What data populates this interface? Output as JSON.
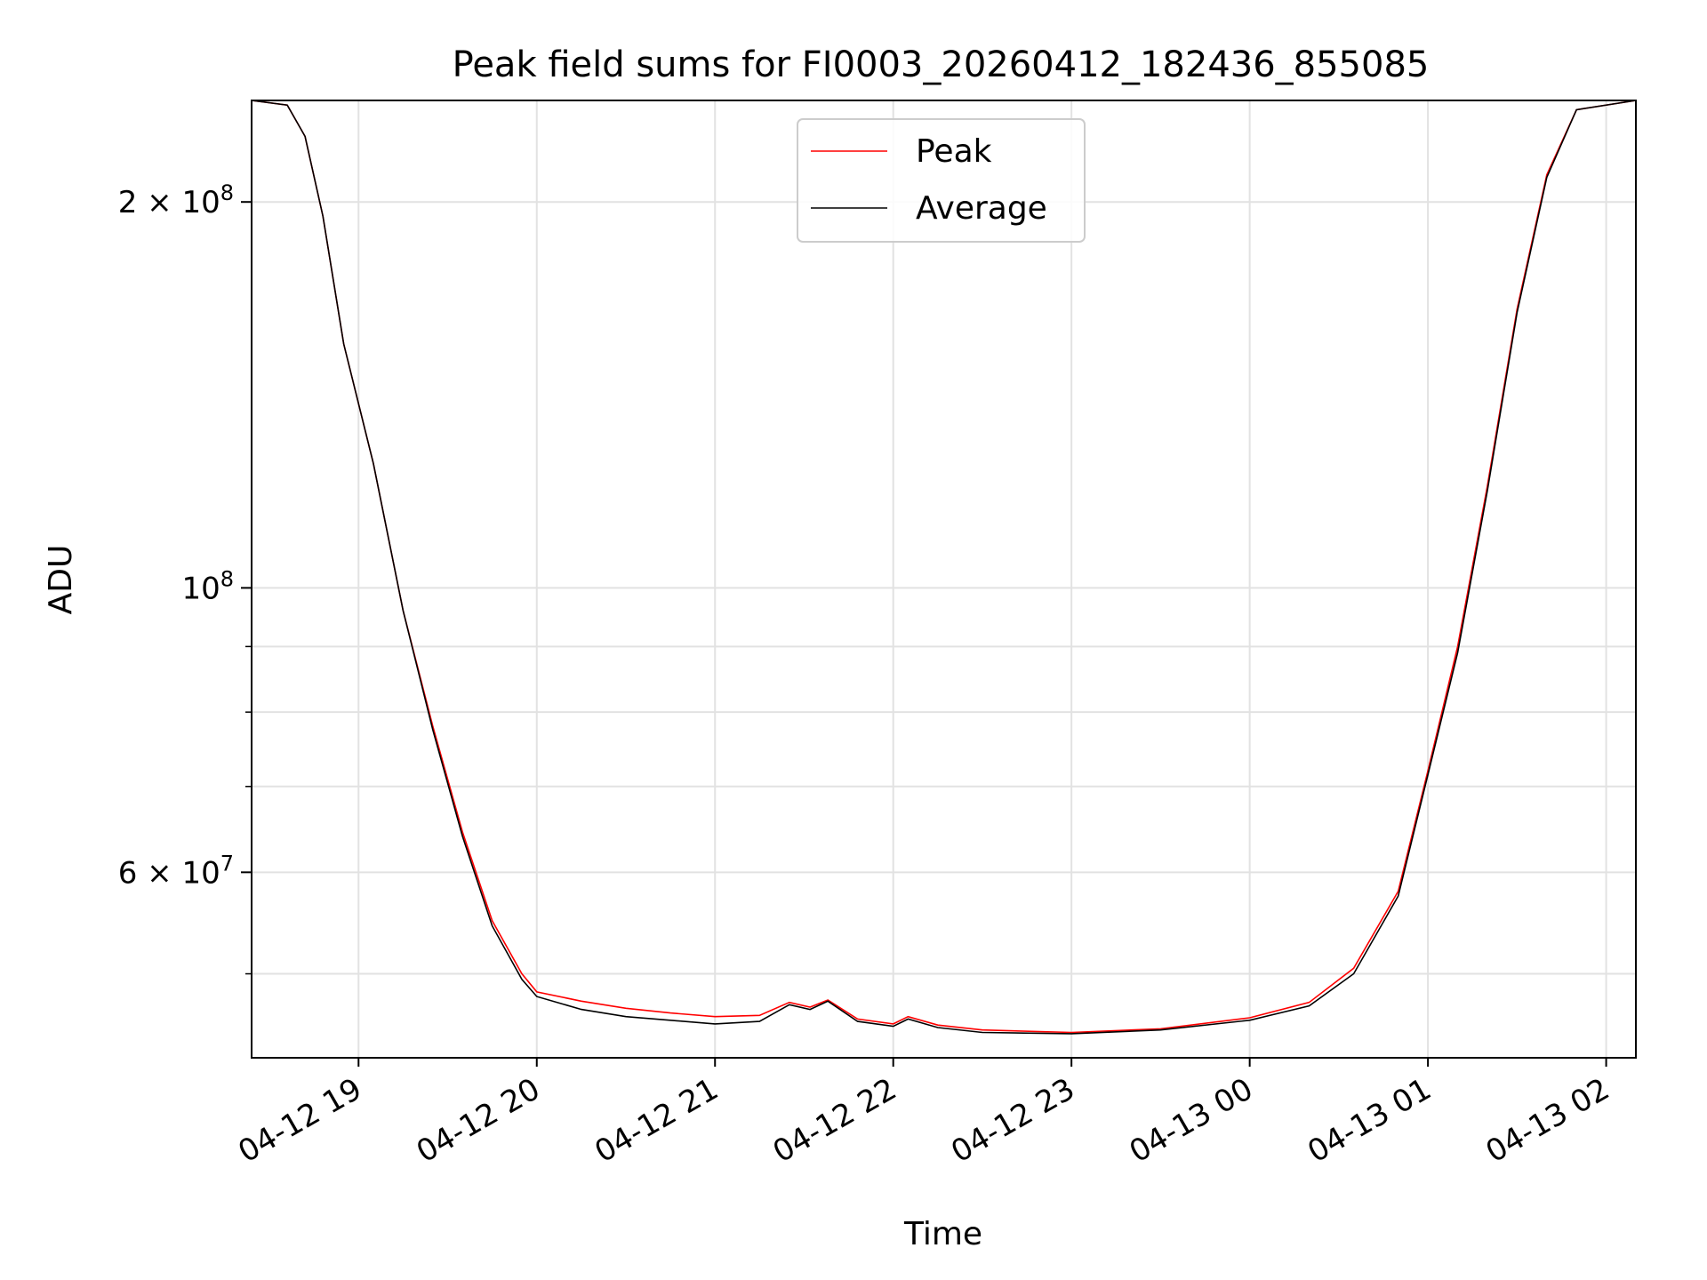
{
  "chart_data": {
    "type": "line",
    "title": "Peak field sums for FI0003_20260412_182436_855085",
    "xlabel": "Time",
    "ylabel": "ADU",
    "x_type": "datetime",
    "xlim": [
      "2026-04-12 18:24",
      "2026-04-13 02:10"
    ],
    "ylim": [
      43000000,
      240000000
    ],
    "y_scale": "log",
    "grid": true,
    "legend_position": "top-center",
    "x_ticks": [
      "2026-04-12 19:00",
      "2026-04-12 20:00",
      "2026-04-12 21:00",
      "2026-04-12 22:00",
      "2026-04-12 23:00",
      "2026-04-13 00:00",
      "2026-04-13 01:00",
      "2026-04-13 02:00"
    ],
    "x_tick_labels": [
      "04-12 19",
      "04-12 20",
      "04-12 21",
      "04-12 22",
      "04-12 23",
      "04-13 00",
      "04-13 01",
      "04-13 02"
    ],
    "y_major_ticks": [
      {
        "value": 60000000,
        "mantissa": "6",
        "exp": "7"
      },
      {
        "value": 100000000,
        "mantissa": "",
        "exp": "8"
      },
      {
        "value": 200000000,
        "mantissa": "2",
        "exp": "8"
      }
    ],
    "y_minor_ticks": [
      50000000,
      70000000,
      80000000,
      90000000
    ],
    "series": [
      {
        "name": "Peak",
        "color": "#ff0000",
        "points": [
          [
            "2026-04-12 18:24",
            240000000
          ],
          [
            "2026-04-12 18:36",
            238000000
          ],
          [
            "2026-04-12 18:42",
            225000000
          ],
          [
            "2026-04-12 18:48",
            195000000
          ],
          [
            "2026-04-12 18:55",
            155000000
          ],
          [
            "2026-04-12 19:05",
            125000000
          ],
          [
            "2026-04-12 19:15",
            96000000
          ],
          [
            "2026-04-12 19:25",
            78000000
          ],
          [
            "2026-04-12 19:35",
            64500000
          ],
          [
            "2026-04-12 19:45",
            55000000
          ],
          [
            "2026-04-12 19:55",
            50000000
          ],
          [
            "2026-04-12 20:00",
            48400000
          ],
          [
            "2026-04-12 20:15",
            47600000
          ],
          [
            "2026-04-12 20:30",
            47000000
          ],
          [
            "2026-04-12 20:45",
            46600000
          ],
          [
            "2026-04-12 21:00",
            46300000
          ],
          [
            "2026-04-12 21:15",
            46400000
          ],
          [
            "2026-04-12 21:25",
            47500000
          ],
          [
            "2026-04-12 21:32",
            47100000
          ],
          [
            "2026-04-12 21:38",
            47700000
          ],
          [
            "2026-04-12 21:48",
            46100000
          ],
          [
            "2026-04-12 22:00",
            45700000
          ],
          [
            "2026-04-12 22:05",
            46300000
          ],
          [
            "2026-04-12 22:15",
            45600000
          ],
          [
            "2026-04-12 22:30",
            45200000
          ],
          [
            "2026-04-12 23:00",
            45000000
          ],
          [
            "2026-04-12 23:30",
            45300000
          ],
          [
            "2026-04-13 00:00",
            46200000
          ],
          [
            "2026-04-13 00:20",
            47500000
          ],
          [
            "2026-04-13 00:35",
            50500000
          ],
          [
            "2026-04-13 00:50",
            58000000
          ],
          [
            "2026-04-13 01:00",
            72000000
          ],
          [
            "2026-04-13 01:10",
            90000000
          ],
          [
            "2026-04-13 01:20",
            120000000
          ],
          [
            "2026-04-13 01:30",
            165000000
          ],
          [
            "2026-04-13 01:40",
            210000000
          ],
          [
            "2026-04-13 01:50",
            236000000
          ],
          [
            "2026-04-13 02:10",
            240000000
          ]
        ]
      },
      {
        "name": "Average",
        "color": "#000000",
        "points": [
          [
            "2026-04-12 18:24",
            240000000
          ],
          [
            "2026-04-12 18:36",
            238000000
          ],
          [
            "2026-04-12 18:42",
            225000000
          ],
          [
            "2026-04-12 18:48",
            195000000
          ],
          [
            "2026-04-12 18:55",
            155000000
          ],
          [
            "2026-04-12 19:05",
            125000000
          ],
          [
            "2026-04-12 19:15",
            96000000
          ],
          [
            "2026-04-12 19:25",
            77500000
          ],
          [
            "2026-04-12 19:35",
            64000000
          ],
          [
            "2026-04-12 19:45",
            54500000
          ],
          [
            "2026-04-12 19:55",
            49500000
          ],
          [
            "2026-04-12 20:00",
            48000000
          ],
          [
            "2026-04-12 20:15",
            46900000
          ],
          [
            "2026-04-12 20:30",
            46300000
          ],
          [
            "2026-04-12 20:45",
            46000000
          ],
          [
            "2026-04-12 21:00",
            45700000
          ],
          [
            "2026-04-12 21:15",
            45900000
          ],
          [
            "2026-04-12 21:25",
            47300000
          ],
          [
            "2026-04-12 21:32",
            46900000
          ],
          [
            "2026-04-12 21:38",
            47600000
          ],
          [
            "2026-04-12 21:48",
            45900000
          ],
          [
            "2026-04-12 22:00",
            45500000
          ],
          [
            "2026-04-12 22:05",
            46100000
          ],
          [
            "2026-04-12 22:15",
            45400000
          ],
          [
            "2026-04-12 22:30",
            45000000
          ],
          [
            "2026-04-12 23:00",
            44900000
          ],
          [
            "2026-04-12 23:30",
            45200000
          ],
          [
            "2026-04-13 00:00",
            46000000
          ],
          [
            "2026-04-13 00:20",
            47200000
          ],
          [
            "2026-04-13 00:35",
            50000000
          ],
          [
            "2026-04-13 00:50",
            57500000
          ],
          [
            "2026-04-13 01:00",
            71500000
          ],
          [
            "2026-04-13 01:10",
            89000000
          ],
          [
            "2026-04-13 01:20",
            119000000
          ],
          [
            "2026-04-13 01:30",
            164000000
          ],
          [
            "2026-04-13 01:40",
            209000000
          ],
          [
            "2026-04-13 01:50",
            236000000
          ],
          [
            "2026-04-13 02:10",
            240000000
          ]
        ]
      }
    ]
  }
}
